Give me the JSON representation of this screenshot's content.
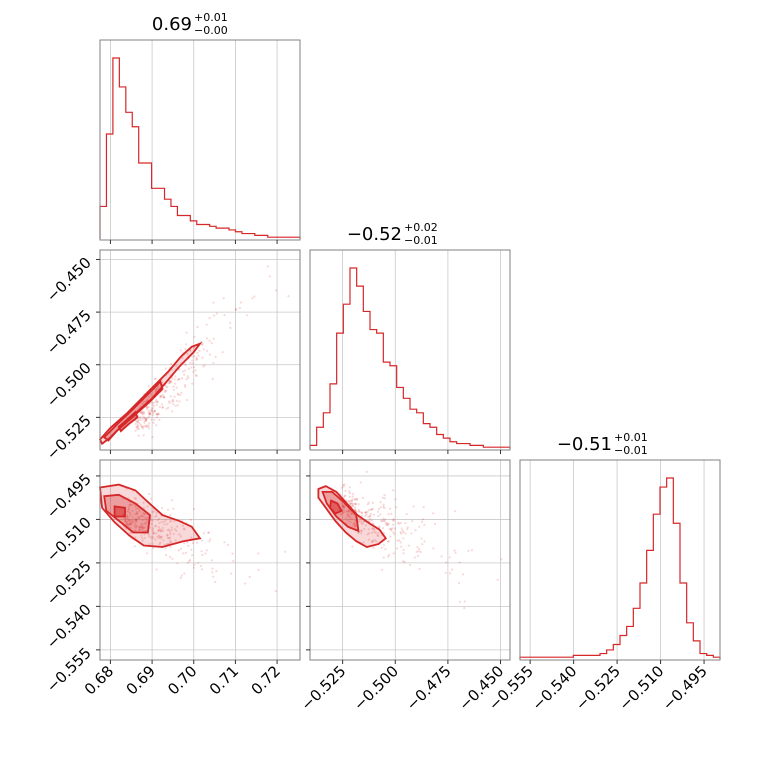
{
  "chart_data": {
    "type": "corner",
    "colors": {
      "accent": "#d62728",
      "grid": "#c8c8c8",
      "frame": "#808080"
    },
    "grid": true,
    "parameters": [
      {
        "key": "p0",
        "title_value": "0.69",
        "title_plus": "+0.01",
        "title_minus": "−0.00",
        "range": [
          0.6775,
          0.7255
        ],
        "ticks": [
          0.68,
          0.69,
          0.7,
          0.71,
          0.72
        ],
        "tick_labels": [
          "0.68",
          "0.69",
          "0.70",
          "0.71",
          "0.72"
        ],
        "hist_values": [
          18,
          58,
          100,
          84,
          70,
          62,
          42,
          42,
          28,
          28,
          22,
          18,
          13,
          13,
          10,
          8,
          8,
          7,
          6,
          6,
          5,
          4,
          3,
          3,
          2,
          2,
          1,
          1,
          1,
          1,
          1
        ]
      },
      {
        "key": "p1",
        "title_value": "−0.52",
        "title_plus": "+0.02",
        "title_minus": "−0.01",
        "range": [
          -0.5405,
          -0.4455
        ],
        "ticks": [
          -0.525,
          -0.5,
          -0.475,
          -0.45
        ],
        "tick_labels": [
          "−0.525",
          "−0.500",
          "−0.475",
          "−0.450"
        ],
        "hist_values": [
          2,
          12,
          20,
          36,
          64,
          80,
          100,
          90,
          76,
          66,
          64,
          48,
          46,
          34,
          28,
          22,
          20,
          14,
          12,
          8,
          6,
          4,
          3,
          3,
          2,
          2,
          1,
          1,
          1,
          1
        ]
      },
      {
        "key": "p2",
        "title_value": "−0.51",
        "title_plus": "+0.01",
        "title_minus": "−0.01",
        "range": [
          -0.5585,
          -0.4895
        ],
        "ticks": [
          -0.555,
          -0.54,
          -0.525,
          -0.51,
          -0.495
        ],
        "tick_labels": [
          "−0.555",
          "−0.540",
          "−0.525",
          "−0.510",
          "−0.495"
        ],
        "hist_values": [
          1,
          1,
          1,
          1,
          1,
          1,
          1,
          1,
          2,
          2,
          2,
          2,
          3,
          5,
          8,
          13,
          18,
          28,
          42,
          60,
          80,
          95,
          100,
          75,
          42,
          20,
          10,
          3,
          2,
          1
        ]
      }
    ],
    "pairs": [
      {
        "row": 1,
        "col": 0,
        "center": [
          0.686,
          -0.527
        ],
        "contours": [
          {
            "level": "outer",
            "points": [
              [
                0.6775,
                -0.5355
              ],
              [
                0.68,
                -0.53
              ],
              [
                0.684,
                -0.523
              ],
              [
                0.689,
                -0.513
              ],
              [
                0.694,
                -0.503
              ],
              [
                0.697,
                -0.496
              ],
              [
                0.6995,
                -0.4915
              ],
              [
                0.7015,
                -0.49
              ],
              [
                0.7,
                -0.494
              ],
              [
                0.6965,
                -0.501
              ],
              [
                0.6935,
                -0.508
              ],
              [
                0.69,
                -0.516
              ],
              [
                0.686,
                -0.523
              ],
              [
                0.6825,
                -0.5295
              ],
              [
                0.68,
                -0.5345
              ],
              [
                0.678,
                -0.5375
              ]
            ]
          },
          {
            "level": "mid",
            "points": [
              [
                0.6785,
                -0.5345
              ],
              [
                0.6815,
                -0.5285
              ],
              [
                0.6855,
                -0.521
              ],
              [
                0.689,
                -0.514
              ],
              [
                0.692,
                -0.508
              ],
              [
                0.6925,
                -0.5115
              ],
              [
                0.6895,
                -0.5175
              ],
              [
                0.6855,
                -0.5245
              ],
              [
                0.6815,
                -0.5315
              ],
              [
                0.6795,
                -0.536
              ]
            ]
          },
          {
            "level": "inner",
            "points": [
              [
                0.682,
                -0.5295
              ],
              [
                0.684,
                -0.526
              ],
              [
                0.686,
                -0.5225
              ],
              [
                0.6865,
                -0.525
              ],
              [
                0.6845,
                -0.528
              ],
              [
                0.6825,
                -0.5315
              ]
            ]
          }
        ]
      },
      {
        "row": 2,
        "col": 0,
        "center": [
          0.683,
          -0.5085
        ],
        "contours": [
          {
            "level": "outer",
            "points": [
              [
                0.6775,
                -0.499
              ],
              [
                0.682,
                -0.498
              ],
              [
                0.686,
                -0.5
              ],
              [
                0.689,
                -0.504
              ],
              [
                0.6925,
                -0.5085
              ],
              [
                0.6965,
                -0.5105
              ],
              [
                0.6995,
                -0.5125
              ],
              [
                0.7015,
                -0.5165
              ],
              [
                0.6975,
                -0.5175
              ],
              [
                0.6925,
                -0.5195
              ],
              [
                0.688,
                -0.519
              ],
              [
                0.6845,
                -0.5155
              ],
              [
                0.681,
                -0.511
              ],
              [
                0.678,
                -0.506
              ]
            ]
          },
          {
            "level": "mid",
            "points": [
              [
                0.6785,
                -0.502
              ],
              [
                0.682,
                -0.5015
              ],
              [
                0.686,
                -0.5045
              ],
              [
                0.6895,
                -0.5085
              ],
              [
                0.689,
                -0.5145
              ],
              [
                0.6855,
                -0.5145
              ],
              [
                0.6825,
                -0.511
              ],
              [
                0.679,
                -0.507
              ]
            ]
          },
          {
            "level": "inner",
            "points": [
              [
                0.681,
                -0.5055
              ],
              [
                0.6835,
                -0.506
              ],
              [
                0.6835,
                -0.509
              ],
              [
                0.681,
                -0.509
              ]
            ]
          }
        ]
      },
      {
        "row": 2,
        "col": 1,
        "center": [
          -0.527,
          -0.505
        ],
        "contours": [
          {
            "level": "outer",
            "points": [
              [
                -0.5365,
                -0.4995
              ],
              [
                -0.533,
                -0.4985
              ],
              [
                -0.528,
                -0.5005
              ],
              [
                -0.523,
                -0.5045
              ],
              [
                -0.518,
                -0.5085
              ],
              [
                -0.512,
                -0.5115
              ],
              [
                -0.5075,
                -0.5135
              ],
              [
                -0.5045,
                -0.5165
              ],
              [
                -0.508,
                -0.5185
              ],
              [
                -0.5135,
                -0.5195
              ],
              [
                -0.5185,
                -0.5175
              ],
              [
                -0.5235,
                -0.5145
              ],
              [
                -0.5285,
                -0.5105
              ],
              [
                -0.533,
                -0.506
              ],
              [
                -0.5365,
                -0.5025
              ]
            ]
          },
          {
            "level": "mid",
            "points": [
              [
                -0.5345,
                -0.5005
              ],
              [
                -0.53,
                -0.5005
              ],
              [
                -0.5245,
                -0.504
              ],
              [
                -0.5185,
                -0.5085
              ],
              [
                -0.5175,
                -0.514
              ],
              [
                -0.5225,
                -0.5125
              ],
              [
                -0.528,
                -0.509
              ],
              [
                -0.5325,
                -0.5045
              ]
            ]
          },
          {
            "level": "inner",
            "points": [
              [
                -0.5305,
                -0.5035
              ],
              [
                -0.5275,
                -0.5045
              ],
              [
                -0.5255,
                -0.507
              ],
              [
                -0.5285,
                -0.508
              ],
              [
                -0.531,
                -0.506
              ]
            ]
          }
        ]
      }
    ]
  }
}
